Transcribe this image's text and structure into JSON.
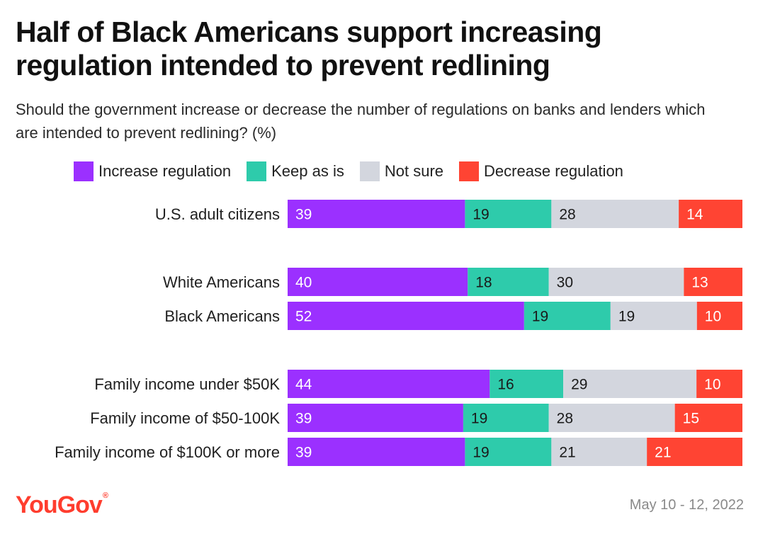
{
  "title": "Half of Black Americans support increasing regulation intended to prevent redlining",
  "subtitle": "Should the government increase or decrease the number of regulations on banks and lenders which are intended to prevent redlining? (%)",
  "logo": {
    "text": "YouGov",
    "mark": "®"
  },
  "date": "May 10 - 12, 2022",
  "colors": {
    "increase": "#9b30ff",
    "keep": "#2ecbab",
    "not_sure": "#d3d6de",
    "decrease": "#ff4433"
  },
  "chart_data": {
    "type": "bar",
    "orientation": "horizontal",
    "stacked": true,
    "title": "Half of Black Americans support increasing regulation intended to prevent redlining",
    "subtitle": "Should the government increase or decrease the number of regulations on banks and lenders which are intended to prevent redlining? (%)",
    "legend_position": "top",
    "grid": false,
    "categories": [
      "U.S. adult citizens",
      "White Americans",
      "Black Americans",
      "Family income under $50K",
      "Family income of $50-100K",
      "Family income of $100K or more"
    ],
    "groups": [
      [
        0
      ],
      [
        1,
        2
      ],
      [
        3,
        4,
        5
      ]
    ],
    "series": [
      {
        "name": "Increase regulation",
        "color": "#9b30ff",
        "label_color": "#ffffff",
        "values": [
          39,
          40,
          52,
          44,
          39,
          39
        ]
      },
      {
        "name": "Keep as is",
        "color": "#2ecbab",
        "label_color": "#1a1a1a",
        "values": [
          19,
          18,
          19,
          16,
          19,
          19
        ]
      },
      {
        "name": "Not sure",
        "color": "#d3d6de",
        "label_color": "#1a1a1a",
        "values": [
          28,
          30,
          19,
          29,
          28,
          21
        ]
      },
      {
        "name": "Decrease regulation",
        "color": "#ff4433",
        "label_color": "#ffffff",
        "values": [
          14,
          13,
          10,
          10,
          15,
          21
        ]
      }
    ]
  }
}
